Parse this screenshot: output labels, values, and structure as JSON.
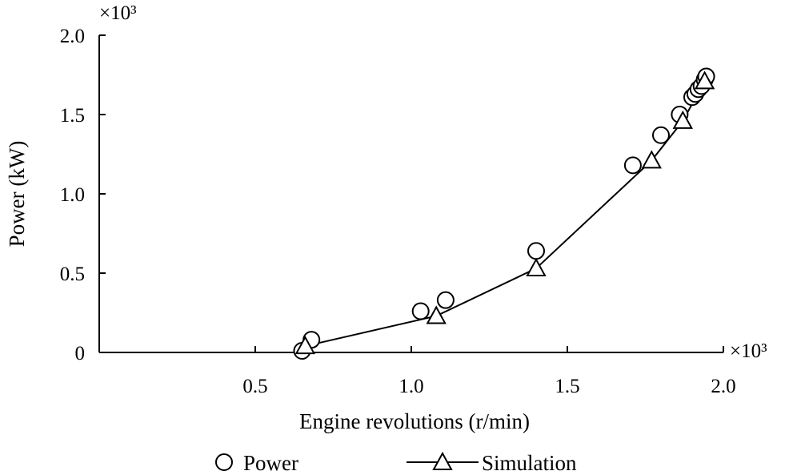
{
  "chart_data": {
    "type": "line",
    "title": "",
    "xlabel": "Engine revolutions (r/min)",
    "ylabel": "Power (kW)",
    "x_multiplier": "×10³",
    "y_multiplier": "×10³",
    "xlim": [
      0,
      2.0
    ],
    "ylim": [
      0,
      2.0
    ],
    "x_ticks": [
      {
        "value": 0.5,
        "label": "0.5"
      },
      {
        "value": 1.0,
        "label": "1.0"
      },
      {
        "value": 1.5,
        "label": "1.5"
      },
      {
        "value": 2.0,
        "label": "2.0"
      }
    ],
    "y_ticks": [
      {
        "value": 0,
        "label": "0"
      },
      {
        "value": 0.5,
        "label": "0.5"
      },
      {
        "value": 1.0,
        "label": "1.0"
      },
      {
        "value": 1.5,
        "label": "1.5"
      },
      {
        "value": 2.0,
        "label": "2.0"
      }
    ],
    "series": [
      {
        "name": "Power",
        "marker": "circle",
        "line": false,
        "points": [
          [
            0.65,
            0.01
          ],
          [
            0.68,
            0.08
          ],
          [
            1.03,
            0.26
          ],
          [
            1.11,
            0.33
          ],
          [
            1.4,
            0.64
          ],
          [
            1.71,
            1.18
          ],
          [
            1.8,
            1.37
          ],
          [
            1.86,
            1.5
          ],
          [
            1.9,
            1.61
          ],
          [
            1.91,
            1.63
          ],
          [
            1.92,
            1.66
          ],
          [
            1.93,
            1.68
          ],
          [
            1.94,
            1.72
          ],
          [
            1.945,
            1.74
          ]
        ]
      },
      {
        "name": "Simulation",
        "marker": "triangle",
        "line": true,
        "points": [
          [
            0.66,
            0.04
          ],
          [
            1.08,
            0.23
          ],
          [
            1.4,
            0.53
          ],
          [
            1.77,
            1.21
          ],
          [
            1.87,
            1.46
          ],
          [
            1.94,
            1.71
          ]
        ]
      }
    ],
    "legend": {
      "placement": "bottom"
    },
    "grid": false,
    "colors": {
      "ink": "#000000",
      "background": "#ffffff"
    }
  }
}
